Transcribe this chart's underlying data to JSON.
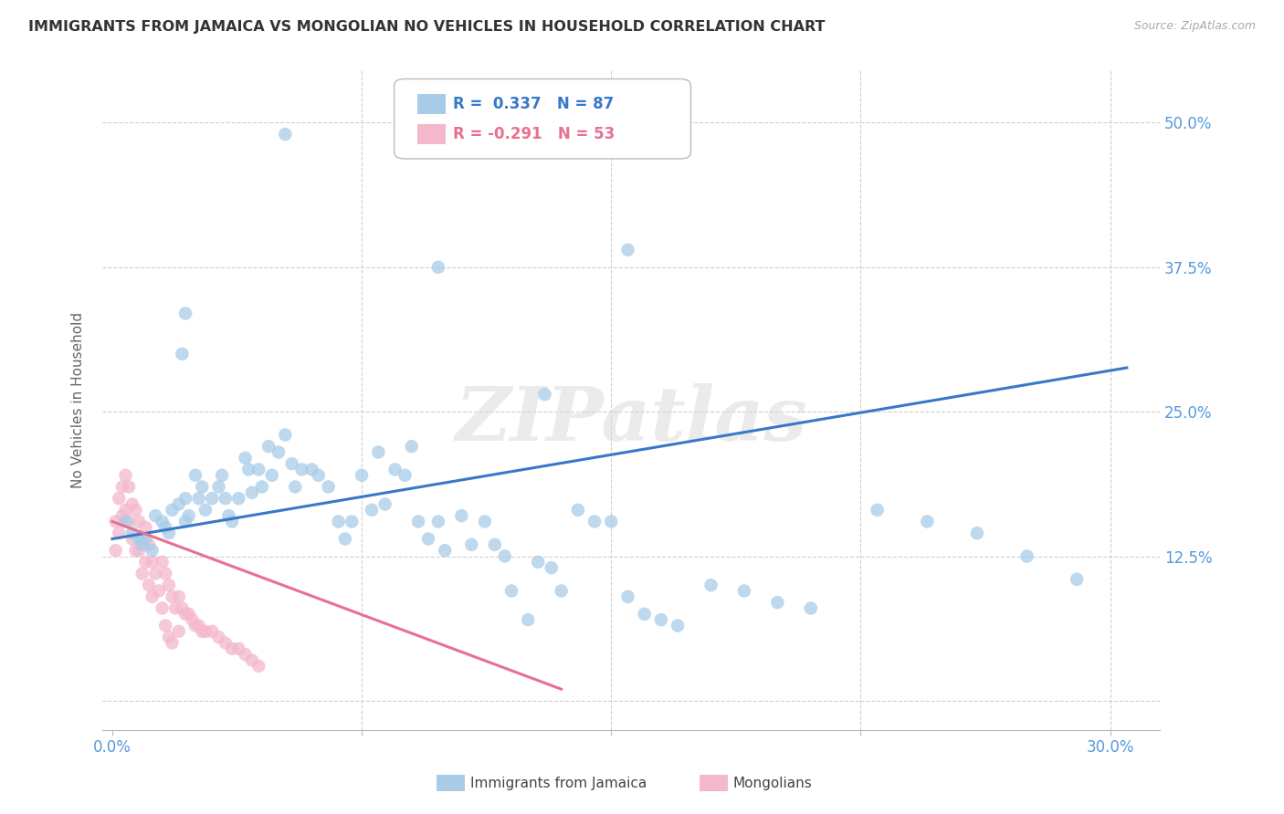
{
  "title": "IMMIGRANTS FROM JAMAICA VS MONGOLIAN NO VEHICLES IN HOUSEHOLD CORRELATION CHART",
  "source": "Source: ZipAtlas.com",
  "ylabel": "No Vehicles in Household",
  "y_ticks": [
    0.0,
    0.125,
    0.25,
    0.375,
    0.5
  ],
  "y_tick_labels": [
    "",
    "12.5%",
    "25.0%",
    "37.5%",
    "50.0%"
  ],
  "xlim": [
    -0.003,
    0.315
  ],
  "ylim": [
    -0.025,
    0.545
  ],
  "legend_blue_label": "Immigrants from Jamaica",
  "legend_pink_label": "Mongolians",
  "legend_r_blue": "R =  0.337",
  "legend_n_blue": "N = 87",
  "legend_r_pink": "R = -0.291",
  "legend_n_pink": "N = 53",
  "blue_color": "#a8cce8",
  "pink_color": "#f4b8cc",
  "trendline_blue_color": "#3878c8",
  "trendline_pink_color": "#e87090",
  "watermark": "ZIPatlas",
  "title_color": "#333333",
  "axis_label_color": "#666666",
  "tick_label_color": "#5599dd",
  "grid_color": "#d0d0d0",
  "blue_scatter_x": [
    0.004,
    0.006,
    0.008,
    0.009,
    0.01,
    0.012,
    0.013,
    0.015,
    0.016,
    0.017,
    0.018,
    0.02,
    0.021,
    0.022,
    0.022,
    0.023,
    0.025,
    0.026,
    0.027,
    0.028,
    0.03,
    0.032,
    0.033,
    0.034,
    0.035,
    0.036,
    0.038,
    0.04,
    0.041,
    0.042,
    0.044,
    0.045,
    0.047,
    0.048,
    0.05,
    0.052,
    0.054,
    0.055,
    0.057,
    0.06,
    0.062,
    0.065,
    0.068,
    0.07,
    0.072,
    0.075,
    0.078,
    0.08,
    0.082,
    0.085,
    0.088,
    0.09,
    0.092,
    0.095,
    0.098,
    0.1,
    0.105,
    0.108,
    0.112,
    0.115,
    0.118,
    0.12,
    0.125,
    0.128,
    0.132,
    0.135,
    0.14,
    0.145,
    0.15,
    0.155,
    0.16,
    0.165,
    0.17,
    0.18,
    0.19,
    0.2,
    0.21,
    0.23,
    0.245,
    0.26,
    0.275,
    0.29,
    0.155,
    0.098,
    0.052,
    0.022,
    0.13
  ],
  "blue_scatter_y": [
    0.155,
    0.145,
    0.14,
    0.135,
    0.14,
    0.13,
    0.16,
    0.155,
    0.15,
    0.145,
    0.165,
    0.17,
    0.3,
    0.175,
    0.155,
    0.16,
    0.195,
    0.175,
    0.185,
    0.165,
    0.175,
    0.185,
    0.195,
    0.175,
    0.16,
    0.155,
    0.175,
    0.21,
    0.2,
    0.18,
    0.2,
    0.185,
    0.22,
    0.195,
    0.215,
    0.23,
    0.205,
    0.185,
    0.2,
    0.2,
    0.195,
    0.185,
    0.155,
    0.14,
    0.155,
    0.195,
    0.165,
    0.215,
    0.17,
    0.2,
    0.195,
    0.22,
    0.155,
    0.14,
    0.155,
    0.13,
    0.16,
    0.135,
    0.155,
    0.135,
    0.125,
    0.095,
    0.07,
    0.12,
    0.115,
    0.095,
    0.165,
    0.155,
    0.155,
    0.09,
    0.075,
    0.07,
    0.065,
    0.1,
    0.095,
    0.085,
    0.08,
    0.165,
    0.155,
    0.145,
    0.125,
    0.105,
    0.39,
    0.375,
    0.49,
    0.335,
    0.265
  ],
  "pink_scatter_x": [
    0.001,
    0.001,
    0.002,
    0.002,
    0.003,
    0.003,
    0.004,
    0.004,
    0.005,
    0.005,
    0.006,
    0.006,
    0.007,
    0.007,
    0.008,
    0.008,
    0.009,
    0.009,
    0.01,
    0.01,
    0.011,
    0.011,
    0.012,
    0.012,
    0.013,
    0.014,
    0.015,
    0.015,
    0.016,
    0.016,
    0.017,
    0.017,
    0.018,
    0.018,
    0.019,
    0.02,
    0.02,
    0.021,
    0.022,
    0.023,
    0.024,
    0.025,
    0.026,
    0.027,
    0.028,
    0.03,
    0.032,
    0.034,
    0.036,
    0.038,
    0.04,
    0.042,
    0.044
  ],
  "pink_scatter_y": [
    0.155,
    0.13,
    0.175,
    0.145,
    0.185,
    0.16,
    0.195,
    0.165,
    0.185,
    0.155,
    0.17,
    0.14,
    0.165,
    0.13,
    0.155,
    0.13,
    0.14,
    0.11,
    0.15,
    0.12,
    0.135,
    0.1,
    0.12,
    0.09,
    0.11,
    0.095,
    0.12,
    0.08,
    0.11,
    0.065,
    0.1,
    0.055,
    0.09,
    0.05,
    0.08,
    0.09,
    0.06,
    0.08,
    0.075,
    0.075,
    0.07,
    0.065,
    0.065,
    0.06,
    0.06,
    0.06,
    0.055,
    0.05,
    0.045,
    0.045,
    0.04,
    0.035,
    0.03
  ],
  "blue_trend_x": [
    0.0,
    0.305
  ],
  "blue_trend_y": [
    0.14,
    0.288
  ],
  "pink_trend_x": [
    0.0,
    0.135
  ],
  "pink_trend_y": [
    0.155,
    0.01
  ]
}
